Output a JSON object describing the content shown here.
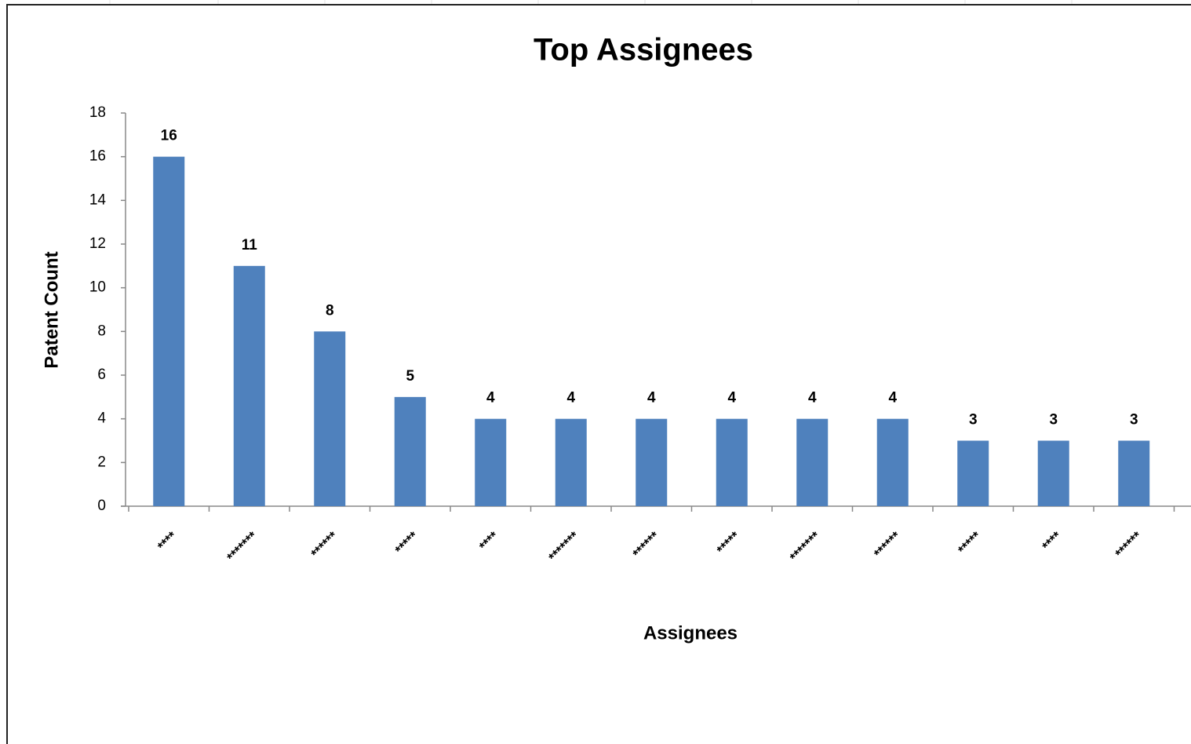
{
  "chart_data": {
    "type": "bar",
    "title": "Top Assignees",
    "x_label": "Assignees",
    "y_label": "Patent Count",
    "categories": [
      "****",
      "*******",
      "******",
      "*****",
      "****",
      "*******",
      "******",
      "*****",
      "*******",
      "******",
      "*****",
      "****",
      "******"
    ],
    "values": [
      16,
      11,
      8,
      5,
      4,
      4,
      4,
      4,
      4,
      4,
      3,
      3,
      3
    ],
    "color": "#4f81bd",
    "ylim": [
      0,
      18
    ],
    "yticks": [
      0,
      2,
      4,
      6,
      8,
      10,
      12,
      14,
      16,
      18
    ],
    "grid": false
  }
}
